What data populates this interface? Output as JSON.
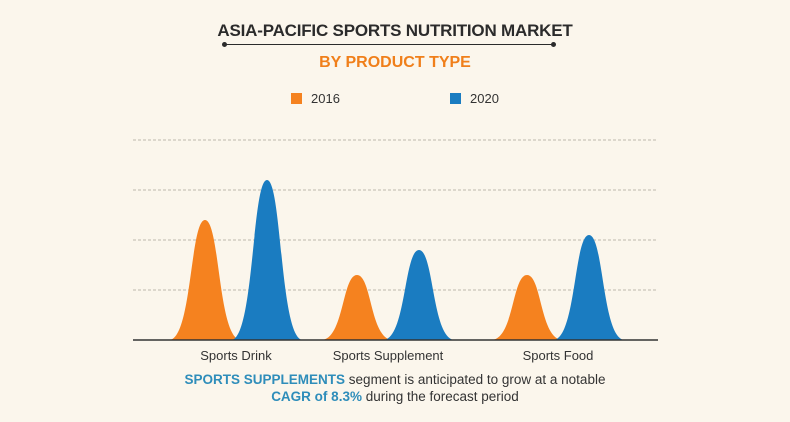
{
  "colors": {
    "background": "#fbf6ec",
    "series_2016": "#f5821f",
    "series_2020": "#1a7cc1",
    "highlight": "#2e8dba",
    "subtitle": "#f07f1a"
  },
  "chart_data": {
    "type": "area",
    "title": "ASIA-PACIFIC SPORTS NUTRITION MARKET",
    "subtitle": "BY PRODUCT TYPE",
    "categories": [
      "Sports Drink",
      "Sports Supplement",
      "Sports Food"
    ],
    "series": [
      {
        "name": "2016",
        "values": [
          2.4,
          1.3,
          1.3
        ]
      },
      {
        "name": "2020",
        "values": [
          3.2,
          1.8,
          2.1
        ]
      }
    ],
    "ylim": [
      0,
      4
    ],
    "grid": true,
    "legend_position": "top-center",
    "xlabel": "",
    "ylabel": ""
  },
  "footnote": {
    "highlight1": "SPORTS SUPPLEMENTS",
    "text1": " segment is anticipated to grow at a notable",
    "highlight2": "CAGR of 8.3%",
    "text2": " during the forecast period"
  }
}
